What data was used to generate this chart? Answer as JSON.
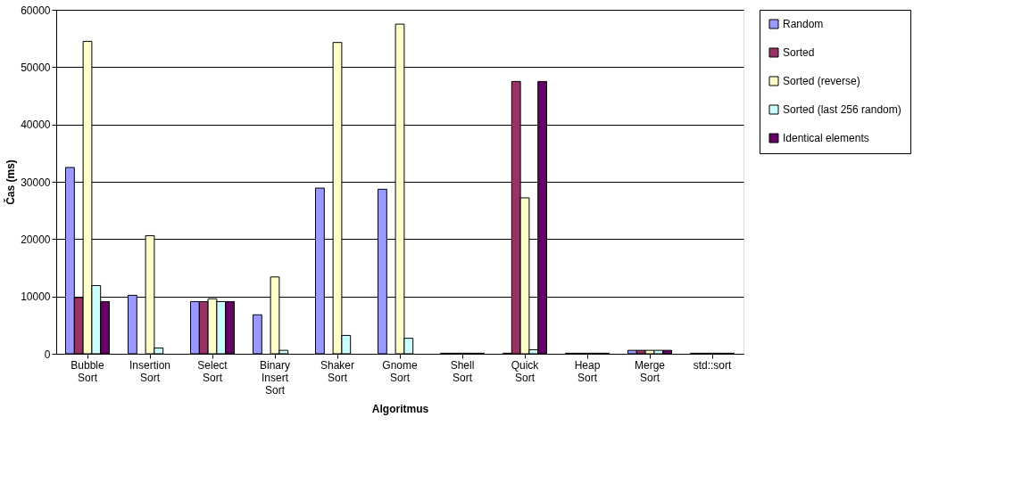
{
  "chart_data": {
    "type": "bar",
    "xlabel": "Algoritmus",
    "ylabel": "Čas (ms)",
    "categories": [
      "Bubble Sort",
      "Insertion Sort",
      "Select Sort",
      "Binary Insert Sort",
      "Shaker Sort",
      "Gnome Sort",
      "Shell Sort",
      "Quick Sort",
      "Heap Sort",
      "Merge Sort",
      "std::sort"
    ],
    "series": [
      {
        "name": "Random",
        "color": "#9999ff",
        "values": [
          32500,
          10200,
          9100,
          6800,
          28900,
          28700,
          100,
          100,
          100,
          600,
          100
        ]
      },
      {
        "name": "Sorted",
        "color": "#993366",
        "values": [
          9800,
          null,
          9100,
          null,
          null,
          null,
          100,
          47500,
          100,
          600,
          100
        ]
      },
      {
        "name": "Sorted (reverse)",
        "color": "#ffffcc",
        "values": [
          54500,
          20600,
          9600,
          13400,
          54300,
          57500,
          100,
          27200,
          100,
          600,
          100
        ]
      },
      {
        "name": "Sorted (last 256 random)",
        "color": "#ccffff",
        "values": [
          11900,
          1000,
          9100,
          600,
          3200,
          2700,
          100,
          700,
          100,
          600,
          100
        ]
      },
      {
        "name": "Identical elements",
        "color": "#660066",
        "values": [
          9100,
          null,
          9100,
          null,
          null,
          null,
          100,
          47500,
          100,
          600,
          100
        ]
      }
    ],
    "ylim": [
      0,
      60000
    ],
    "yticks": [
      0,
      10000,
      20000,
      30000,
      40000,
      50000,
      60000
    ],
    "grid": "y",
    "legend": "right"
  }
}
